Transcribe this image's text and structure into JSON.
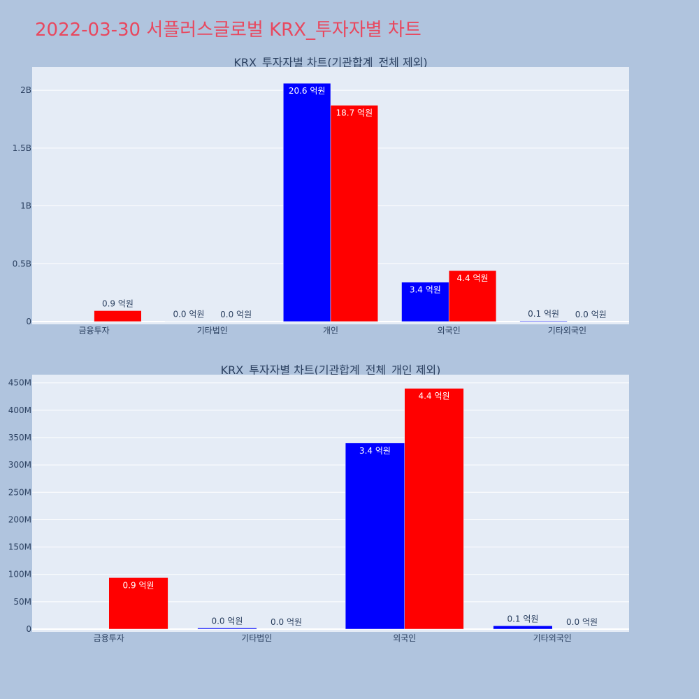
{
  "page_title": "2022-03-30 서플러스글로벌 KRX_투자자별 차트",
  "colors": {
    "buy": "#0000ff",
    "sell": "#ff0000",
    "plot_bg": "#e5ecf6",
    "page_bg": "#b0c4de",
    "title": "#e8485f"
  },
  "chart_data": [
    {
      "type": "bar",
      "title": "KRX_투자자별 차트(기관합계_전체 제외)",
      "categories": [
        "금융투자",
        "기타법인",
        "개인",
        "외국인",
        "기타외국인"
      ],
      "ylim": [
        0,
        2200000000
      ],
      "yticks": [
        0,
        500000000,
        1000000000,
        1500000000,
        2000000000
      ],
      "ytick_labels": [
        "0",
        "0.5B",
        "1B",
        "1.5B",
        "2B"
      ],
      "grid": true,
      "series": [
        {
          "color": "#0000ff",
          "values": [
            0,
            2000000,
            2060000000,
            340000000,
            6000000
          ],
          "labels": [
            "",
            "0.0 억원",
            "20.6 억원",
            "3.4 억원",
            "0.1 억원"
          ]
        },
        {
          "color": "#ff0000",
          "values": [
            94000000,
            0,
            1870000000,
            440000000,
            0
          ],
          "labels": [
            "0.9 억원",
            "0.0 억원",
            "18.7 억원",
            "4.4 억원",
            "0.0 억원"
          ]
        }
      ]
    },
    {
      "type": "bar",
      "title": "KRX_투자자별 차트(기관합계_전체_개인 제외)",
      "categories": [
        "금융투자",
        "기타법인",
        "외국인",
        "기타외국인"
      ],
      "ylim": [
        0,
        465000000
      ],
      "yticks": [
        0,
        50000000,
        100000000,
        150000000,
        200000000,
        250000000,
        300000000,
        350000000,
        400000000,
        450000000
      ],
      "ytick_labels": [
        "0",
        "50M",
        "100M",
        "150M",
        "200M",
        "250M",
        "300M",
        "350M",
        "400M",
        "450M"
      ],
      "grid": true,
      "series": [
        {
          "color": "#0000ff",
          "values": [
            0,
            2000000,
            340000000,
            6000000
          ],
          "labels": [
            "",
            "0.0 억원",
            "3.4 억원",
            "0.1 억원"
          ]
        },
        {
          "color": "#ff0000",
          "values": [
            94000000,
            0,
            440000000,
            0
          ],
          "labels": [
            "0.9 억원",
            "0.0 억원",
            "4.4 억원",
            "0.0 억원"
          ]
        }
      ]
    }
  ]
}
